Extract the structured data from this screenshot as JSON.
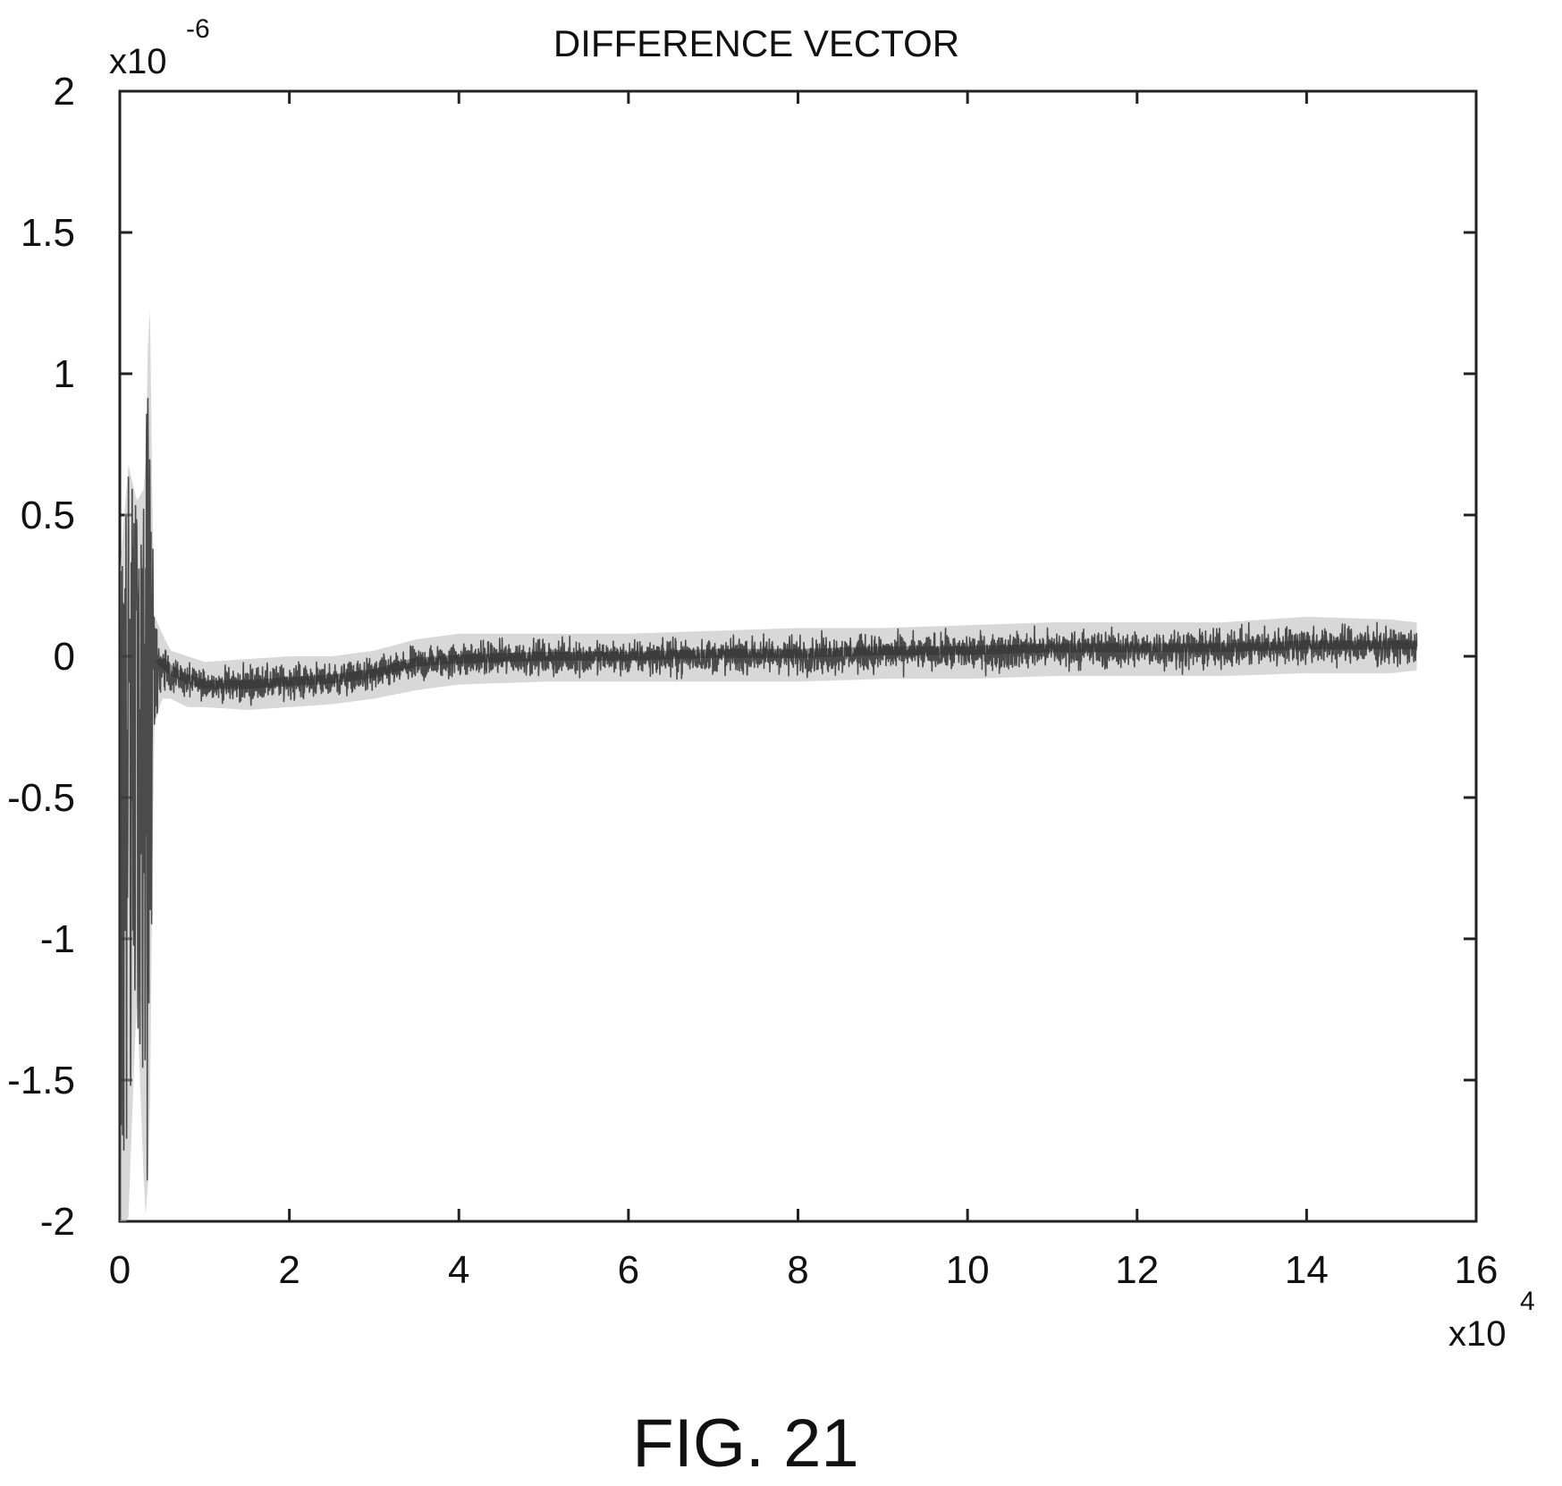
{
  "figure": {
    "caption": "FIG. 21"
  },
  "chart_data": {
    "type": "line",
    "title": "DIFFERENCE VECTOR",
    "xlabel": "",
    "ylabel": "",
    "x_multiplier": {
      "base": "x10",
      "exponent": "4"
    },
    "y_multiplier": {
      "base": "x10",
      "exponent": "-6"
    },
    "xlim": [
      0,
      16
    ],
    "ylim": [
      -2,
      2
    ],
    "x_ticks": [
      0,
      2,
      4,
      6,
      8,
      10,
      12,
      14,
      16
    ],
    "x_tick_labels": [
      "0",
      "2",
      "4",
      "6",
      "8",
      "10",
      "12",
      "14",
      "16"
    ],
    "y_ticks": [
      2,
      1.5,
      1,
      0.5,
      0,
      -0.5,
      -1,
      -1.5,
      -2
    ],
    "y_tick_labels": [
      "2",
      "1.5",
      "1",
      "0.5",
      "0",
      "-0.5",
      "-1",
      "-1.5",
      "-2"
    ],
    "grid": false,
    "line_color": "#333333",
    "series": [
      {
        "x": [
          0,
          0.1,
          0.2,
          0.3,
          0.35,
          0.4,
          0.5,
          0.6,
          0.8,
          1,
          1.5,
          2,
          2.5,
          3,
          3.5,
          4,
          5,
          6,
          7,
          8,
          9,
          10,
          11,
          12,
          13,
          14,
          15,
          15.3
        ],
        "y_center": [
          0,
          -0.1,
          0.05,
          -0.05,
          0.1,
          -0.05,
          -0.02,
          -0.05,
          -0.08,
          -0.1,
          -0.1,
          -0.09,
          -0.08,
          -0.06,
          -0.02,
          -0.01,
          0,
          0,
          0.01,
          0.01,
          0.02,
          0.02,
          0.03,
          0.03,
          0.03,
          0.04,
          0.04,
          0.04
        ],
        "y_max": [
          0.3,
          0.68,
          0.55,
          0.6,
          1.4,
          0.15,
          0.08,
          0.02,
          0,
          -0.02,
          -0.01,
          0,
          0,
          0.02,
          0.06,
          0.08,
          0.08,
          0.08,
          0.09,
          0.1,
          0.1,
          0.11,
          0.12,
          0.12,
          0.12,
          0.14,
          0.13,
          0.12
        ],
        "y_min": [
          -2,
          -2,
          -1.2,
          -2,
          -1.8,
          -0.25,
          -0.15,
          -0.15,
          -0.18,
          -0.18,
          -0.19,
          -0.18,
          -0.17,
          -0.15,
          -0.12,
          -0.1,
          -0.09,
          -0.09,
          -0.09,
          -0.09,
          -0.08,
          -0.08,
          -0.07,
          -0.07,
          -0.07,
          -0.06,
          -0.06,
          -0.05
        ]
      }
    ]
  }
}
